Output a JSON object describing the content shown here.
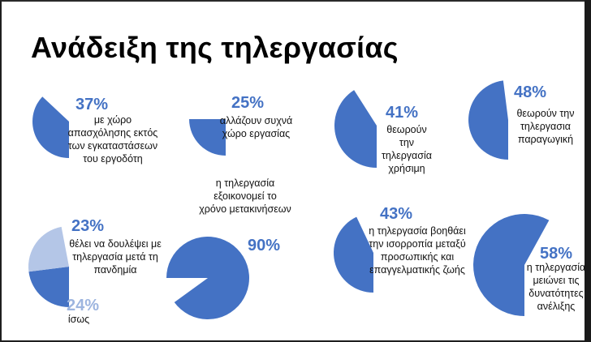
{
  "title": "Ανάδειξη της τηλεργασίας",
  "colors": {
    "primary": "#4472C4",
    "light": "#b4c6e7"
  },
  "chart_data": {
    "type": "pie",
    "items": [
      {
        "id": "c1",
        "value": 37,
        "pct_label": "37%",
        "label": "με χώρο απασχόλησης εκτός των εγκαταστάσεων του εργοδότη"
      },
      {
        "id": "c2",
        "value": 25,
        "pct_label": "25%",
        "label": "αλλάζουν συχνά χώρο εργασίας"
      },
      {
        "id": "c3",
        "value": 41,
        "pct_label": "41%",
        "label": "θεωρούν την τηλεργασία χρήσιμη"
      },
      {
        "id": "c4",
        "value": 48,
        "pct_label": "48%",
        "label": "θεωρούν την τηλεργασια παραγωγική"
      },
      {
        "id": "c5",
        "value": 23,
        "pct_label": "23%",
        "label": "θέλει να δουλέψει με τηλεργασία μετά τη πανδημία",
        "secondary": {
          "value": 24,
          "pct_label": "24%",
          "label": "ίσως"
        }
      },
      {
        "id": "c6",
        "value": 90,
        "pct_label": "90%",
        "label": "η τηλεργασία εξοικονομεί το χρόνο μετακινήσεων"
      },
      {
        "id": "c7",
        "value": 43,
        "pct_label": "43%",
        "label": "η τηλεργασία βοηθάει την ισορροπία μεταξύ προσωπικής και επαγγελματικής ζωής"
      },
      {
        "id": "c8",
        "value": 58,
        "pct_label": "58%",
        "label": "η τηλεργασία μειώνει τις δυνατότητες ανέλιξης"
      }
    ]
  }
}
